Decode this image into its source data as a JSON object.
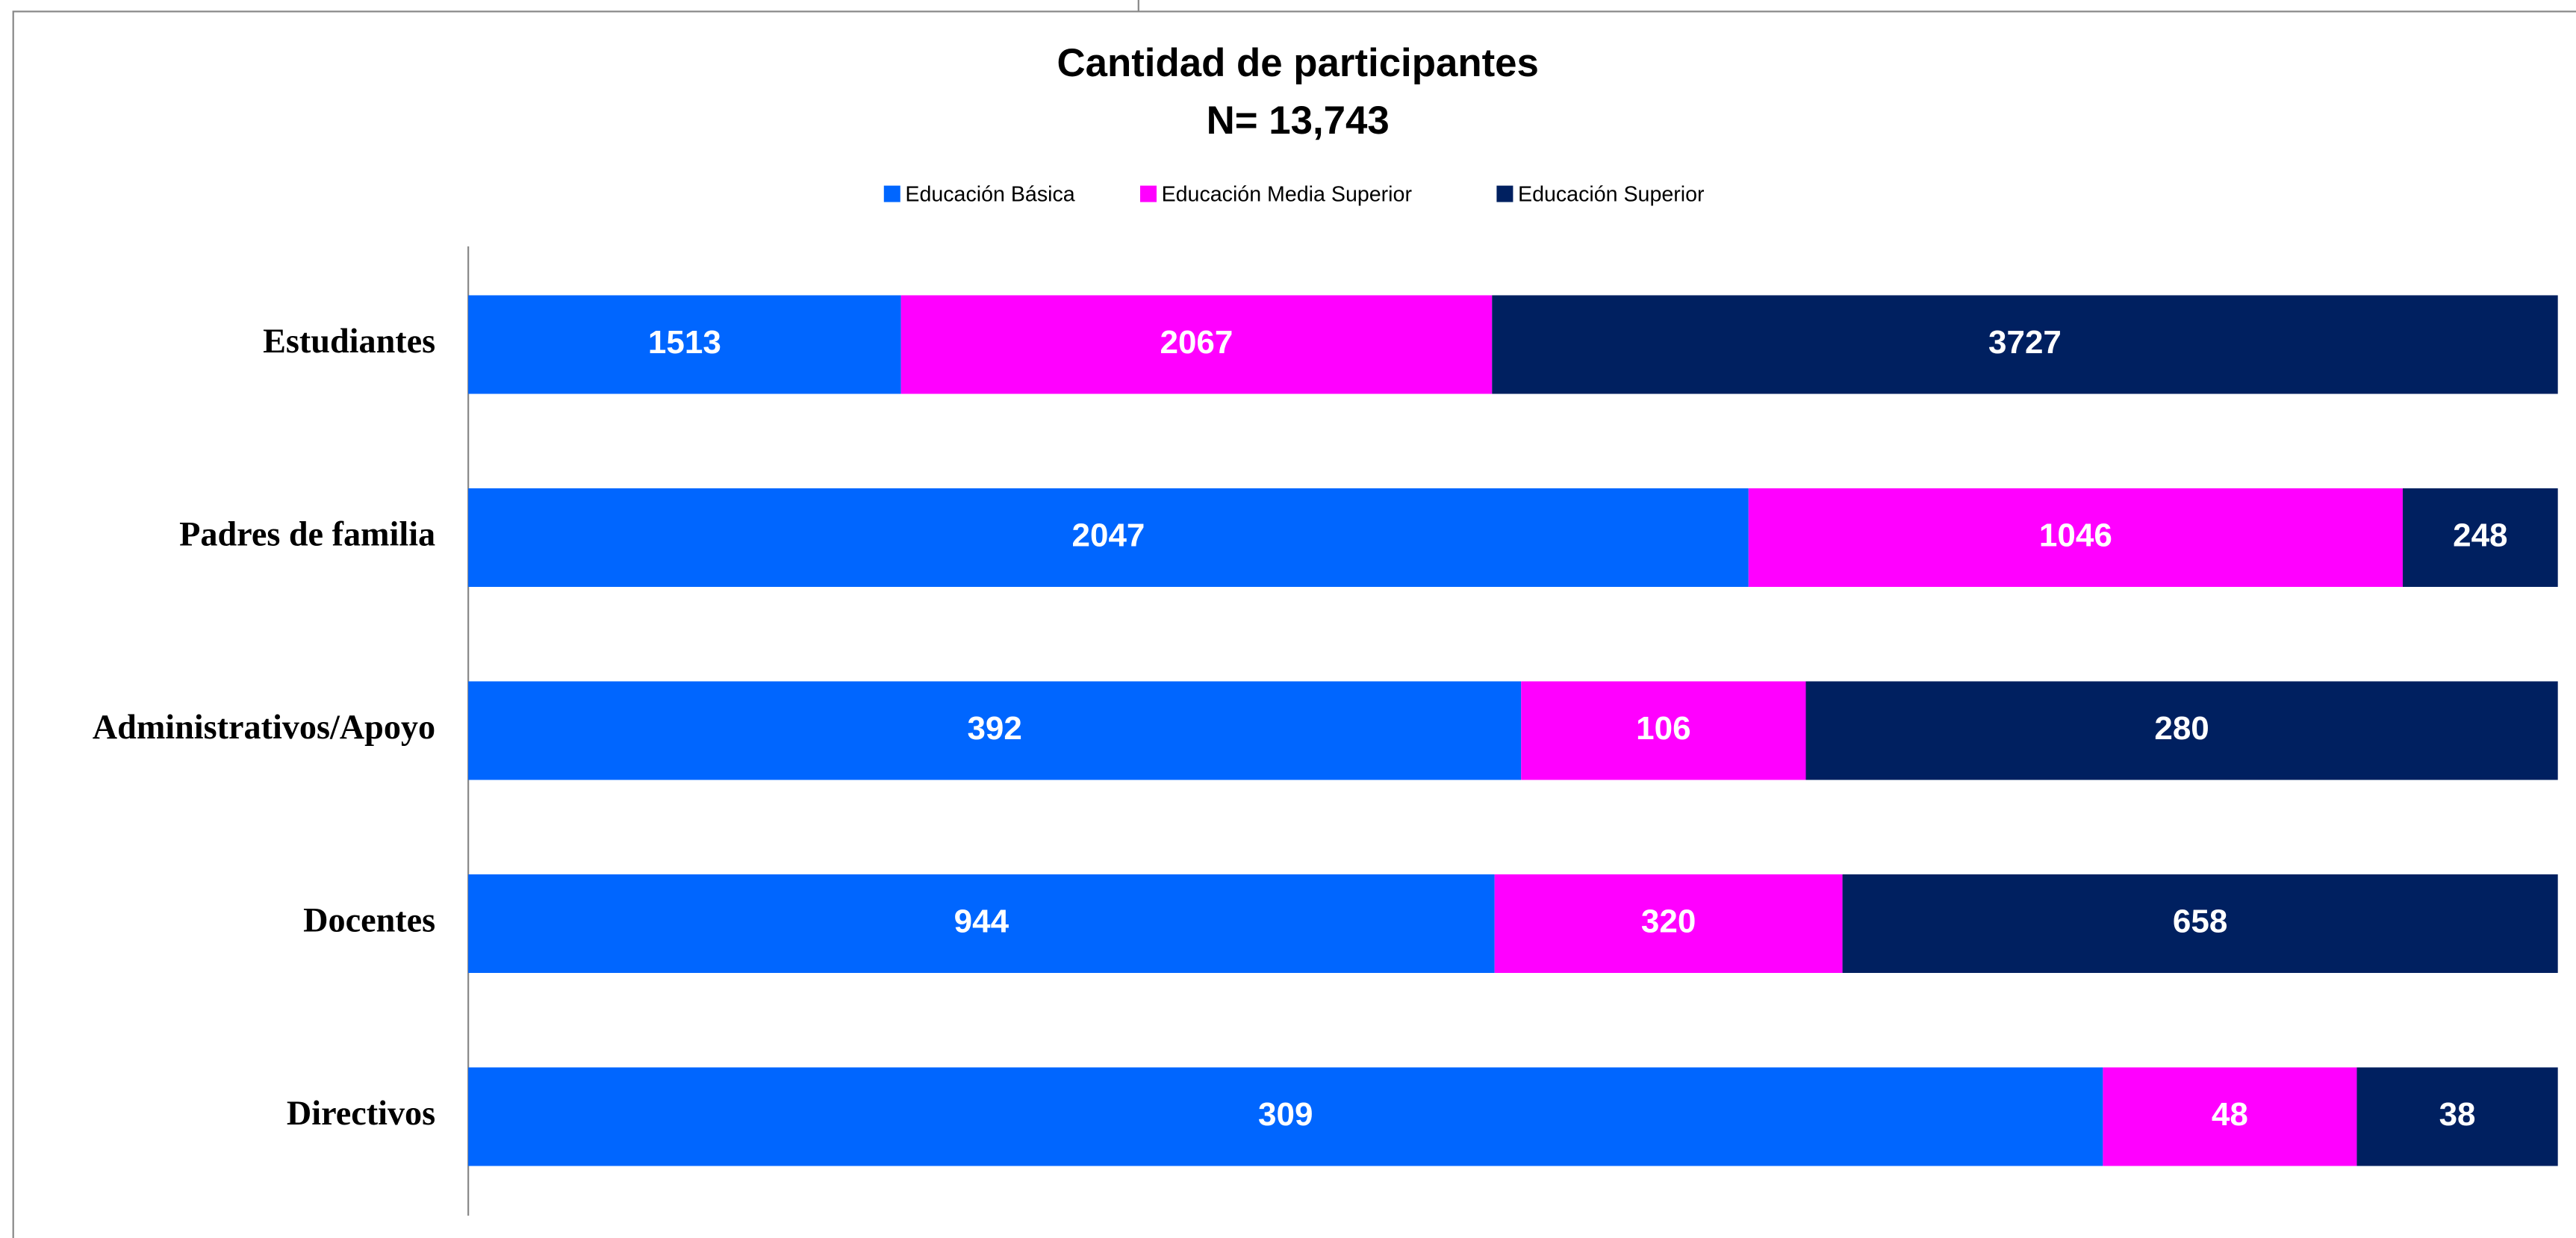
{
  "chart_data": {
    "type": "bar",
    "orientation": "horizontal",
    "stacking": "percent",
    "title": "Cantidad de participantes",
    "subtitle": "N= 13,743",
    "categories": [
      "Estudiantes",
      "Padres de familia",
      "Administrativos/Apoyo",
      "Docentes",
      "Directivos"
    ],
    "series": [
      {
        "name": "Educación Básica",
        "color": "#0066ff",
        "values": [
          1513,
          2047,
          392,
          944,
          309
        ]
      },
      {
        "name": "Educación Media Superior",
        "color": "#ff00ff",
        "values": [
          2067,
          1046,
          106,
          320,
          48
        ]
      },
      {
        "name": "Educación Superior",
        "color": "#002060",
        "values": [
          3727,
          248,
          280,
          658,
          38
        ]
      }
    ],
    "legend": "top"
  }
}
